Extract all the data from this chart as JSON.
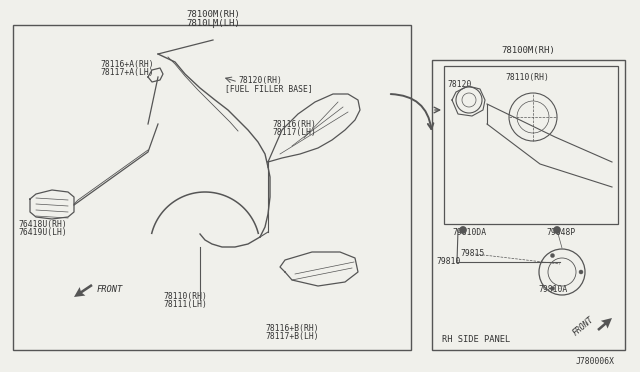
{
  "bg_color": "#f0f0eb",
  "line_color": "#555555",
  "text_color": "#333333",
  "font_size_small": 6.5,
  "font_size_tiny": 5.8,
  "labels": {
    "top_center_1": "78100M(RH)",
    "top_center_2": "7810LM(LH)",
    "upper_left_1": "78116+A(RH)",
    "upper_left_2": "78117+A(LH)",
    "fuel_filler_1": "78120(RH)",
    "fuel_filler_2": "[FUEL FILLER BASE]",
    "mid_right_1": "78116(RH)",
    "mid_right_2": "78117(LH)",
    "left_panel_1": "76418U(RH)",
    "left_panel_2": "76419U(LH)",
    "bottom_center_1": "78110(RH)",
    "bottom_center_2": "78111(LH)",
    "bottom_right_1": "78116+B(RH)",
    "bottom_right_2": "78117+B(LH)",
    "front_text": "FRONT",
    "inset_title": "78100M(RH)",
    "inset_78120": "78120",
    "inset_78110": "78110(RH)",
    "inset_79810da": "79810DA",
    "inset_79848p": "79848P",
    "inset_79810": "79810",
    "inset_79815": "79815",
    "inset_79810a": "79810A",
    "inset_rh_side": "RH SIDE PANEL",
    "inset_front": "FRONT",
    "diagram_code": "J780006X"
  }
}
